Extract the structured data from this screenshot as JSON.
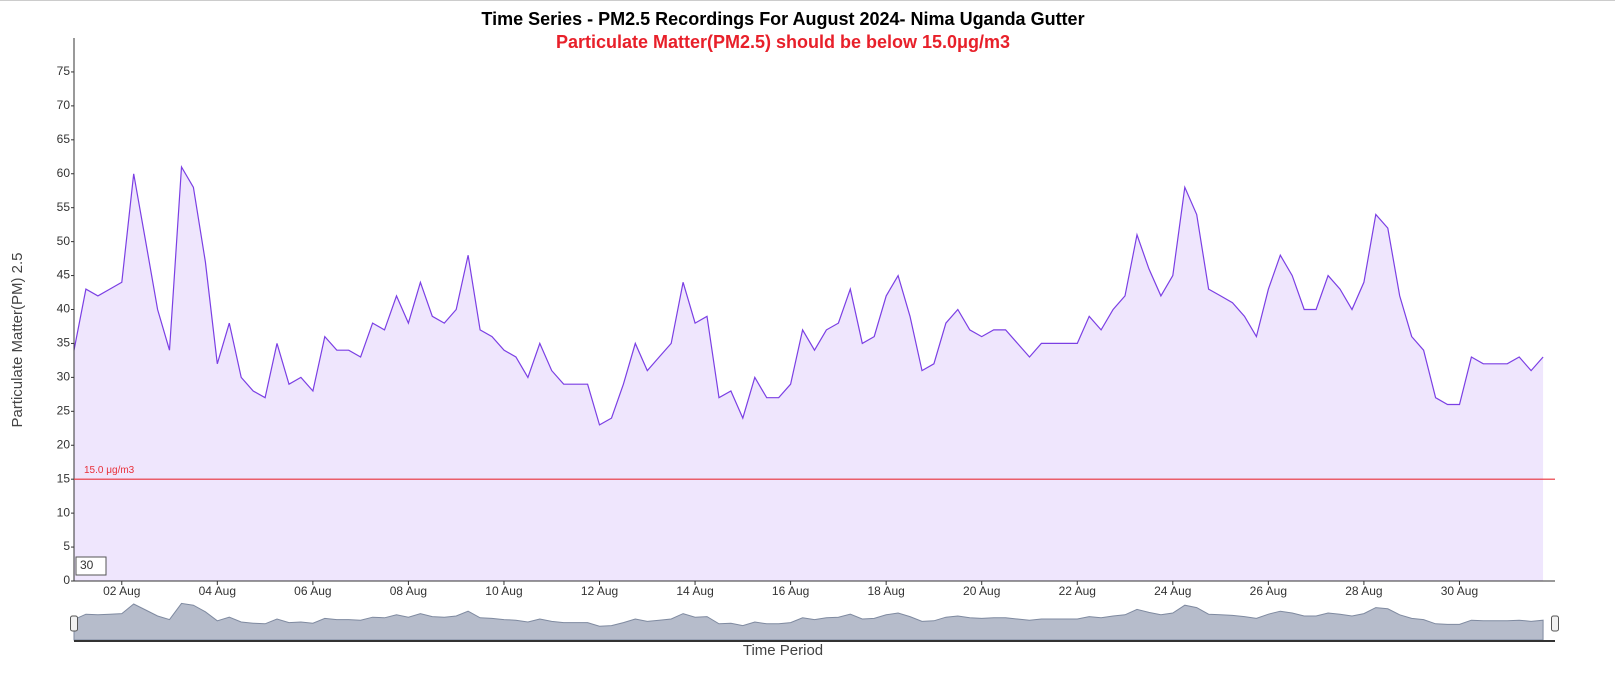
{
  "chart_data": {
    "type": "area",
    "title": "Time Series - PM2.5 Recordings For August 2024- Nima Uganda Gutter",
    "subtitle": "Particulate Matter(PM2.5) should be below 15.0μg/m3",
    "y_label": "Particulate Matter(PM) 2.5",
    "x_label": "Time Period",
    "zoom_input": "30",
    "color": "#7b3fe4",
    "fill": "#efe6fd",
    "threshold": {
      "value": 15,
      "label": "15.0 μg/m3",
      "color": "#e8303a"
    },
    "x": [
      1,
      1.25,
      1.5,
      1.75,
      2,
      2.25,
      2.5,
      2.75,
      3,
      3.25,
      3.5,
      3.75,
      4,
      4.25,
      4.5,
      4.75,
      5,
      5.25,
      5.5,
      5.75,
      6,
      6.25,
      6.5,
      6.75,
      7,
      7.25,
      7.5,
      7.75,
      8,
      8.25,
      8.5,
      8.75,
      9,
      9.25,
      9.5,
      9.75,
      10,
      10.25,
      10.5,
      10.75,
      11,
      11.25,
      11.5,
      11.75,
      12,
      12.25,
      12.5,
      12.75,
      13,
      13.25,
      13.5,
      13.75,
      14,
      14.25,
      14.5,
      14.75,
      15,
      15.25,
      15.5,
      15.75,
      16,
      16.25,
      16.5,
      16.75,
      17,
      17.25,
      17.5,
      17.75,
      18,
      18.25,
      18.5,
      18.75,
      19,
      19.25,
      19.5,
      19.75,
      20,
      20.25,
      20.5,
      20.75,
      21,
      21.25,
      21.5,
      21.75,
      22,
      22.25,
      22.5,
      22.75,
      23,
      23.25,
      23.5,
      23.75,
      24,
      24.25,
      24.5,
      24.75,
      25,
      25.25,
      25.5,
      25.75,
      26,
      26.25,
      26.5,
      26.75,
      27,
      27.25,
      27.5,
      27.75,
      28,
      28.25,
      28.5,
      28.75,
      29,
      29.25,
      29.5,
      29.75,
      30,
      30.25,
      30.5,
      30.75,
      31,
      31.25,
      31.5,
      31.75
    ],
    "values": [
      34,
      43,
      42,
      43,
      44,
      60,
      50,
      40,
      34,
      61,
      58,
      47,
      32,
      38,
      30,
      28,
      27,
      35,
      29,
      30,
      28,
      36,
      34,
      34,
      33,
      38,
      37,
      42,
      38,
      44,
      39,
      38,
      40,
      48,
      37,
      36,
      34,
      33,
      30,
      35,
      31,
      29,
      29,
      29,
      23,
      24,
      29,
      35,
      31,
      33,
      35,
      44,
      38,
      39,
      27,
      28,
      24,
      30,
      27,
      27,
      29,
      37,
      34,
      37,
      38,
      43,
      35,
      36,
      42,
      45,
      39,
      31,
      32,
      38,
      40,
      37,
      36,
      37,
      37,
      35,
      33,
      35,
      35,
      35,
      35,
      39,
      37,
      40,
      42,
      51,
      46,
      42,
      45,
      58,
      54,
      43,
      42,
      41,
      39,
      36,
      43,
      48,
      45,
      40,
      40,
      45,
      43,
      40,
      44,
      54,
      52,
      42,
      36,
      34,
      27,
      26,
      26,
      33,
      32,
      32,
      32,
      33,
      31,
      33
    ],
    "xlim": [
      1,
      32
    ],
    "ylim": [
      0,
      80
    ],
    "xticks": [
      {
        "value": 2,
        "label": "02 Aug"
      },
      {
        "value": 4,
        "label": "04 Aug"
      },
      {
        "value": 6,
        "label": "06 Aug"
      },
      {
        "value": 8,
        "label": "08 Aug"
      },
      {
        "value": 10,
        "label": "10 Aug"
      },
      {
        "value": 12,
        "label": "12 Aug"
      },
      {
        "value": 14,
        "label": "14 Aug"
      },
      {
        "value": 16,
        "label": "16 Aug"
      },
      {
        "value": 18,
        "label": "18 Aug"
      },
      {
        "value": 20,
        "label": "20 Aug"
      },
      {
        "value": 22,
        "label": "22 Aug"
      },
      {
        "value": 24,
        "label": "24 Aug"
      },
      {
        "value": 26,
        "label": "26 Aug"
      },
      {
        "value": 28,
        "label": "28 Aug"
      },
      {
        "value": 30,
        "label": "30 Aug"
      }
    ],
    "yticks": [
      0,
      5,
      10,
      15,
      20,
      25,
      30,
      35,
      40,
      45,
      50,
      55,
      60,
      65,
      70,
      75
    ]
  }
}
